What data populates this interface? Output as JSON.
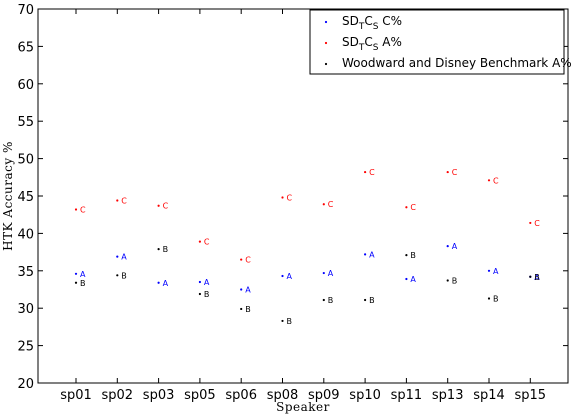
{
  "chart_data": {
    "type": "scatter",
    "title": "",
    "xlabel": "Speaker",
    "ylabel": "HTK Accuracy %",
    "categories": [
      "sp01",
      "sp02",
      "sp03",
      "sp05",
      "sp06",
      "sp08",
      "sp09",
      "sp10",
      "sp11",
      "sp13",
      "sp14",
      "sp15"
    ],
    "ylim": [
      20,
      70
    ],
    "yticks": [
      20,
      25,
      30,
      35,
      40,
      45,
      50,
      55,
      60,
      65,
      70
    ],
    "grid": false,
    "legend_position": "top-right",
    "legend": [
      {
        "main": "SD",
        "sub1": "T",
        "mid": "C",
        "sub2": "S",
        "tail": " C%"
      },
      {
        "main": "SD",
        "sub1": "T",
        "mid": "C",
        "sub2": "S",
        "tail": " A%"
      },
      {
        "main": "Woodward and Disney Benchmark A%",
        "sub1": "",
        "mid": "",
        "sub2": "",
        "tail": ""
      }
    ],
    "series": [
      {
        "marker_label": "A",
        "color": "#0000ff",
        "values": [
          34.6,
          36.9,
          33.4,
          33.5,
          32.5,
          34.3,
          34.7,
          37.2,
          33.9,
          38.3,
          35.0,
          34.2
        ]
      },
      {
        "marker_label": "C",
        "color": "#ff0000",
        "values": [
          43.2,
          44.4,
          43.7,
          38.9,
          36.5,
          44.8,
          43.9,
          48.2,
          43.5,
          48.2,
          47.1,
          41.4
        ]
      },
      {
        "marker_label": "B",
        "color": "#000000",
        "values": [
          33.4,
          34.4,
          37.9,
          31.9,
          29.9,
          28.3,
          31.1,
          31.1,
          37.1,
          33.7,
          31.3,
          34.2
        ]
      }
    ]
  }
}
